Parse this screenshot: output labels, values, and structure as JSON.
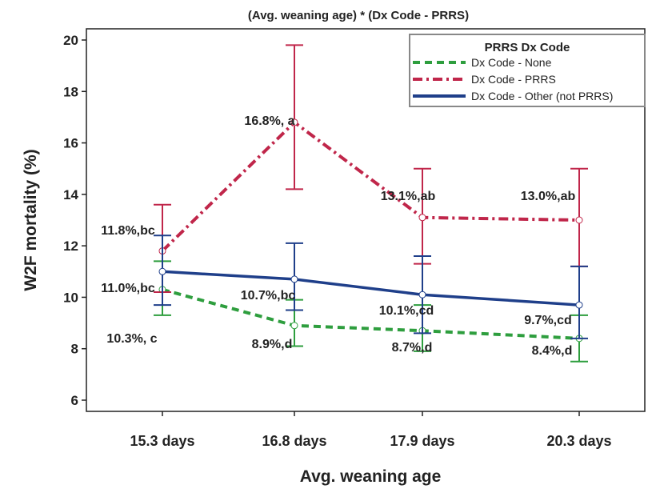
{
  "chart_data": {
    "type": "line",
    "title": "(Avg. weaning age) * (Dx Code - PRRS)",
    "xlabel": "Avg. weaning age",
    "ylabel": "W2F mortality (%)",
    "categories": [
      "15.3 days",
      "16.8 days",
      "17.9 days",
      "20.3 days"
    ],
    "ylim": [
      6,
      20
    ],
    "yticks": [
      6,
      8,
      10,
      12,
      14,
      16,
      18,
      20
    ],
    "grid": false,
    "legend": {
      "title": "PRRS Dx Code",
      "placement": "top-right"
    },
    "series": [
      {
        "name": "Dx Code - None",
        "color": "#2e9e3e",
        "style": "dashed",
        "values": [
          10.3,
          8.9,
          8.7,
          8.4
        ],
        "lower": [
          9.3,
          8.1,
          7.9,
          7.5
        ],
        "upper": [
          11.4,
          9.9,
          9.7,
          9.3
        ],
        "labels": [
          "10.3%, c",
          "8.9%,d",
          "8.7%,d",
          "8.4%,d"
        ]
      },
      {
        "name": "Dx Code - PRRS",
        "color": "#c0264a",
        "style": "dash-dot",
        "values": [
          11.8,
          16.8,
          13.1,
          13.0
        ],
        "lower": [
          10.2,
          14.2,
          11.3,
          11.2
        ],
        "upper": [
          13.6,
          19.8,
          15.0,
          15.0
        ],
        "labels": [
          "11.8%,bc",
          "16.8%, a",
          "13.1%,ab",
          "13.0%,ab"
        ]
      },
      {
        "name": "Dx Code - Other (not PRRS)",
        "color": "#1f3f8a",
        "style": "solid",
        "values": [
          11.0,
          10.7,
          10.1,
          9.7
        ],
        "lower": [
          9.7,
          9.5,
          8.6,
          8.4
        ],
        "upper": [
          12.4,
          12.1,
          11.6,
          11.2
        ],
        "labels": [
          "11.0%,bc",
          "10.7%,bc",
          "10.1%,cd",
          "9.7%,cd"
        ]
      }
    ]
  }
}
